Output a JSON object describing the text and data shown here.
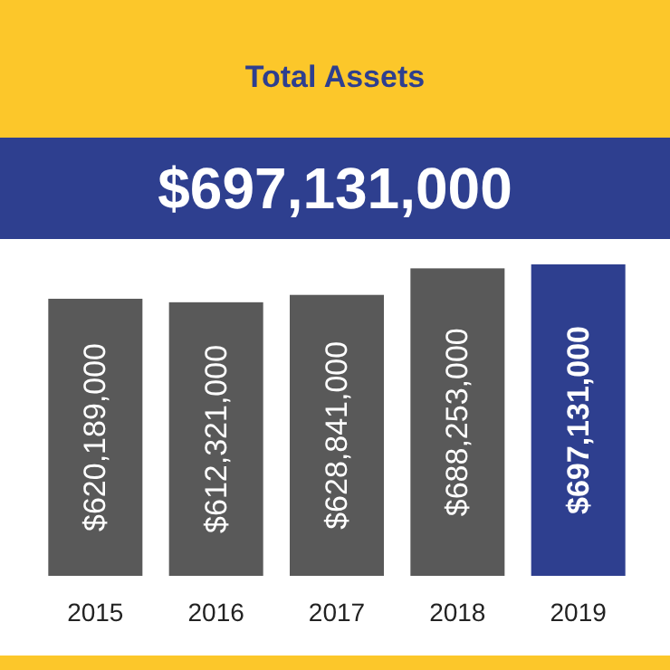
{
  "chart_data": {
    "type": "bar",
    "title": "Total Assets",
    "subtitle": "$697,131,000",
    "categories": [
      "2015",
      "2016",
      "2017",
      "2018",
      "2019"
    ],
    "values": [
      620189000,
      612321000,
      628841000,
      688253000,
      697131000
    ],
    "value_labels": [
      "$620,189,000",
      "$612,321,000",
      "$628,841,000",
      "$688,253,000",
      "$697,131,000"
    ],
    "colors": [
      "#595959",
      "#595959",
      "#595959",
      "#595959",
      "#2e3f8f"
    ]
  }
}
